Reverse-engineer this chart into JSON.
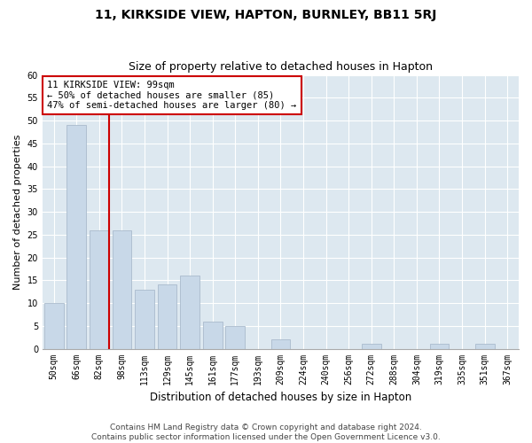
{
  "title": "11, KIRKSIDE VIEW, HAPTON, BURNLEY, BB11 5RJ",
  "subtitle": "Size of property relative to detached houses in Hapton",
  "xlabel": "Distribution of detached houses by size in Hapton",
  "ylabel": "Number of detached properties",
  "categories": [
    "50sqm",
    "66sqm",
    "82sqm",
    "98sqm",
    "113sqm",
    "129sqm",
    "145sqm",
    "161sqm",
    "177sqm",
    "193sqm",
    "209sqm",
    "224sqm",
    "240sqm",
    "256sqm",
    "272sqm",
    "288sqm",
    "304sqm",
    "319sqm",
    "335sqm",
    "351sqm",
    "367sqm"
  ],
  "values": [
    10,
    49,
    26,
    26,
    13,
    14,
    16,
    6,
    5,
    0,
    2,
    0,
    0,
    0,
    1,
    0,
    0,
    1,
    0,
    1,
    0
  ],
  "bar_color": "#c8d8e8",
  "bar_edge_color": "#aabbcc",
  "vline_color": "#cc0000",
  "annotation_text": "11 KIRKSIDE VIEW: 99sqm\n← 50% of detached houses are smaller (85)\n47% of semi-detached houses are larger (80) →",
  "annotation_box_color": "#ffffff",
  "annotation_box_edge": "#cc0000",
  "ylim": [
    0,
    60
  ],
  "yticks": [
    0,
    5,
    10,
    15,
    20,
    25,
    30,
    35,
    40,
    45,
    50,
    55,
    60
  ],
  "background_color": "#dde8f0",
  "grid_color": "#ffffff",
  "footer_line1": "Contains HM Land Registry data © Crown copyright and database right 2024.",
  "footer_line2": "Contains public sector information licensed under the Open Government Licence v3.0.",
  "title_fontsize": 10,
  "subtitle_fontsize": 9,
  "xlabel_fontsize": 8.5,
  "ylabel_fontsize": 8,
  "tick_fontsize": 7,
  "annotation_fontsize": 7.5,
  "footer_fontsize": 6.5,
  "fig_bg": "#ffffff"
}
